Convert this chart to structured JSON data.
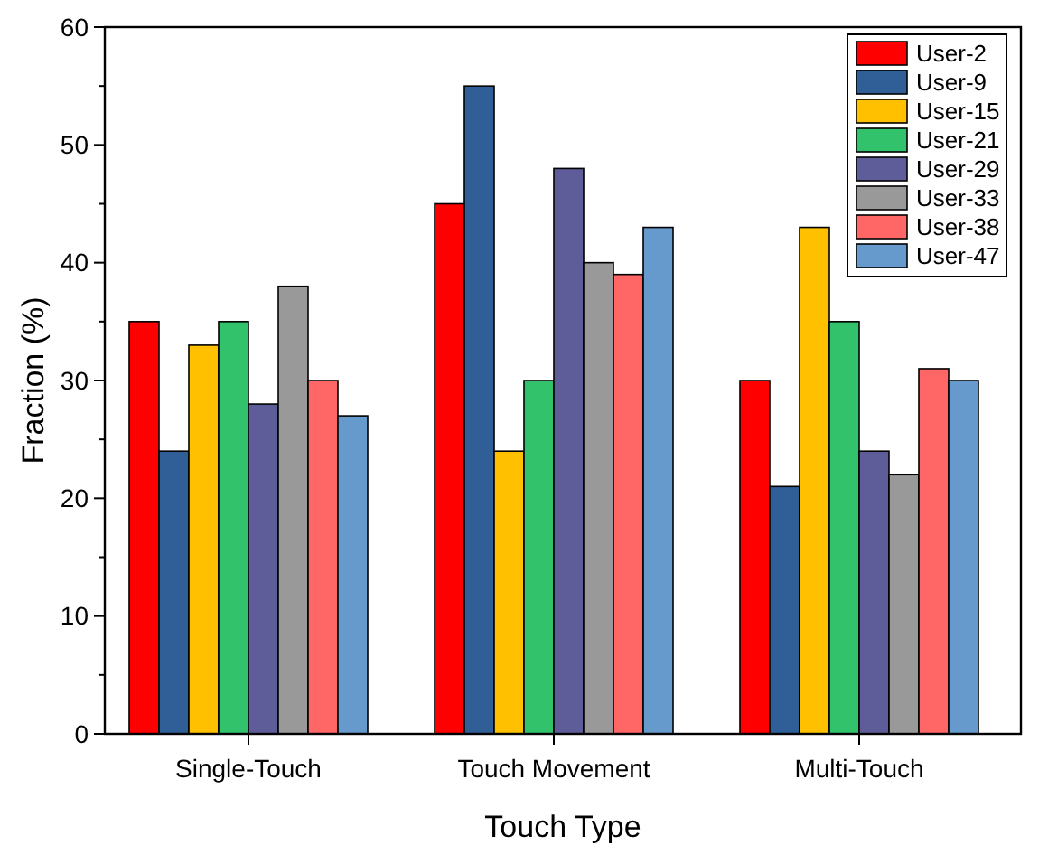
{
  "chart_data": {
    "type": "bar",
    "xlabel": "Touch Type",
    "ylabel": "Fraction (%)",
    "categories": [
      "Single-Touch",
      "Touch Movement",
      "Multi-Touch"
    ],
    "series": [
      {
        "name": "User-2",
        "color": "#ff0000",
        "values": [
          35,
          45,
          30
        ]
      },
      {
        "name": "User-9",
        "color": "#2f5f96",
        "values": [
          24,
          55,
          21
        ]
      },
      {
        "name": "User-15",
        "color": "#ffc000",
        "values": [
          33,
          24,
          43
        ]
      },
      {
        "name": "User-21",
        "color": "#33c26c",
        "values": [
          35,
          30,
          35
        ]
      },
      {
        "name": "User-29",
        "color": "#5e5d99",
        "values": [
          28,
          48,
          24
        ]
      },
      {
        "name": "User-33",
        "color": "#999999",
        "values": [
          38,
          40,
          22
        ]
      },
      {
        "name": "User-38",
        "color": "#ff6666",
        "values": [
          30,
          39,
          31
        ]
      },
      {
        "name": "User-47",
        "color": "#6699cc",
        "values": [
          27,
          43,
          30
        ]
      }
    ],
    "ylim": [
      0,
      60
    ],
    "yticks": [
      0,
      {
        "value": 5,
        "label": null
      },
      10,
      {
        "value": 15,
        "label": null
      },
      20,
      {
        "value": 25,
        "label": null
      },
      30,
      {
        "value": 35,
        "label": null
      },
      40,
      {
        "value": 45,
        "label": null
      },
      50,
      {
        "value": 55,
        "label": null
      },
      60
    ],
    "legend": "top right",
    "grid": false
  }
}
